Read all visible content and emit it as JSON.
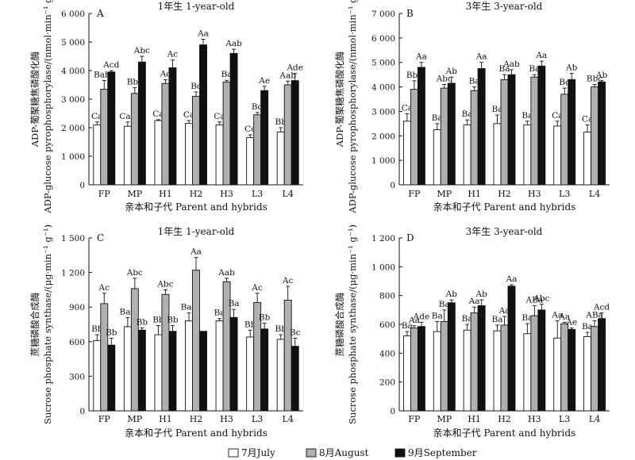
{
  "legend": [
    {
      "label": "7月July",
      "color": "#ffffff"
    },
    {
      "label": "8月August",
      "color": "#b0b0b0"
    },
    {
      "label": "9月September",
      "color": "#111111"
    }
  ],
  "chart_data": [
    {
      "type": "bar",
      "panel": "A",
      "title": "1年生 1-year-old",
      "xlabel": "亲本和子代 Parent and hybrids",
      "ylabel_cn": "ADP-葡聚糖焦磷酸化酶",
      "ylabel_en": "ADP-glucose pyrophosphorylase/(nmol·min⁻¹ g⁻¹)",
      "ylim": [
        0,
        6000
      ],
      "yticks": [
        0,
        1000,
        2000,
        3000,
        4000,
        5000,
        6000
      ],
      "ytick_labels": [
        "0",
        "1 000",
        "2 000",
        "3 000",
        "4 000",
        "5 000",
        "6 000"
      ],
      "categories": [
        "FP",
        "MP",
        "H1",
        "H2",
        "H3",
        "L3",
        "L4"
      ],
      "series": [
        {
          "name": "7月July",
          "values": [
            2100,
            2050,
            2250,
            2150,
            2100,
            1650,
            1850
          ],
          "errors": [
            100,
            150,
            30,
            100,
            100,
            100,
            150
          ],
          "labels": [
            "Ca",
            "Cab",
            "Ca",
            "Ca",
            "Ca",
            "Cc",
            "Bb"
          ]
        },
        {
          "name": "8月August",
          "values": [
            3350,
            3200,
            3550,
            3100,
            3600,
            2450,
            3500
          ],
          "errors": [
            300,
            200,
            130,
            150,
            60,
            80,
            130
          ],
          "labels": [
            "Babc",
            "Bbc",
            "Ac",
            "Bc",
            "Ba",
            "Bd",
            "Aab"
          ]
        },
        {
          "name": "9月September",
          "values": [
            3950,
            4300,
            4100,
            4900,
            4600,
            3300,
            3650
          ],
          "errors": [
            50,
            200,
            270,
            200,
            150,
            150,
            250
          ],
          "labels": [
            "Acd",
            "Abc",
            "Ac",
            "Aa",
            "Aab",
            "Ae",
            "Ade"
          ]
        }
      ]
    },
    {
      "type": "bar",
      "panel": "B",
      "title": "3年生 3-year-old",
      "xlabel": "亲本和子代 Parent and hybrids",
      "ylabel_cn": "ADP-葡聚糖焦磷酸化酶",
      "ylabel_en": "ADP-glucose pyrophosphorylase/(nmol·min⁻¹ g⁻¹)",
      "ylim": [
        0,
        7000
      ],
      "yticks": [
        0,
        1000,
        2000,
        3000,
        4000,
        5000,
        6000,
        7000
      ],
      "ytick_labels": [
        "0",
        "1 000",
        "2 000",
        "3 000",
        "4 000",
        "5 000",
        "6 000",
        "7 000"
      ],
      "categories": [
        "FP",
        "MP",
        "H1",
        "H2",
        "H3",
        "L3",
        "L4"
      ],
      "series": [
        {
          "name": "7月July",
          "values": [
            2600,
            2250,
            2450,
            2500,
            2450,
            2400,
            2150
          ],
          "errors": [
            300,
            250,
            200,
            350,
            150,
            200,
            300
          ],
          "labels": [
            "Ca",
            "Ba",
            "Ba",
            "Ba",
            "Ba",
            "Ca",
            "Ca"
          ]
        },
        {
          "name": "8月August",
          "values": [
            3900,
            3950,
            3850,
            4300,
            4400,
            3700,
            4000
          ],
          "errors": [
            350,
            150,
            150,
            200,
            100,
            250,
            100
          ],
          "labels": [
            "Bbc",
            "Abc",
            "Ba",
            "Ba",
            "Ba",
            "Bc",
            "Bbc"
          ]
        },
        {
          "name": "9月September",
          "values": [
            4800,
            4150,
            4750,
            4500,
            4850,
            4300,
            4200
          ],
          "errors": [
            200,
            250,
            250,
            200,
            200,
            250,
            50
          ],
          "labels": [
            "Aa",
            "Ab",
            "Aa",
            "Aab",
            "Aa",
            "Ab",
            "Ab"
          ]
        }
      ]
    },
    {
      "type": "bar",
      "panel": "C",
      "title": "1年生 1-year-old",
      "xlabel": "亲本和子代 Parent and hybrids",
      "ylabel_cn": "蔗糖磷酸合成酶",
      "ylabel_en": "Sucrose phosphate synthase/(μg·min⁻¹ g⁻¹)",
      "ylim": [
        0,
        1500
      ],
      "yticks": [
        0,
        300,
        600,
        900,
        1200,
        1500
      ],
      "ytick_labels": [
        "0",
        "300",
        "600",
        "900",
        "1 200",
        "1 500"
      ],
      "categories": [
        "FP",
        "MP",
        "H1",
        "H2",
        "H3",
        "L3",
        "L4"
      ],
      "series": [
        {
          "name": "7月July",
          "values": [
            610,
            730,
            660,
            780,
            780,
            640,
            620
          ],
          "errors": [
            50,
            80,
            80,
            70,
            20,
            60,
            40
          ],
          "labels": [
            "Bb",
            "Bab",
            "Bb",
            "Bab",
            "Ba",
            "Bb",
            "Bb"
          ]
        },
        {
          "name": "8月August",
          "values": [
            930,
            1060,
            1010,
            1220,
            1120,
            940,
            960
          ],
          "errors": [
            90,
            90,
            40,
            110,
            30,
            80,
            120
          ],
          "labels": [
            "Ac",
            "Abc",
            "Abc",
            "Aa",
            "Aab",
            "Ac",
            "Ac"
          ]
        },
        {
          "name": "9月September",
          "values": [
            570,
            700,
            690,
            690,
            810,
            710,
            560
          ],
          "errors": [
            60,
            20,
            50,
            0,
            70,
            50,
            70
          ],
          "labels": [
            "Bb",
            "Bb",
            "Bb",
            "",
            "Ba",
            "Bb",
            "Bc"
          ]
        }
      ]
    },
    {
      "type": "bar",
      "panel": "D",
      "title": "3年生 3-year-old",
      "xlabel": "亲本和子代 Parent and hybrids",
      "ylabel_cn": "蔗糖磷酸合成酶",
      "ylabel_en": "Sucrose phosphate synthase/(μg·min⁻¹ g⁻¹)",
      "ylim": [
        0,
        1200
      ],
      "yticks": [
        0,
        200,
        400,
        600,
        800,
        1000,
        1200
      ],
      "ytick_labels": [
        "0",
        "200",
        "400",
        "600",
        "800",
        "1 000",
        "1 200"
      ],
      "categories": [
        "FP",
        "MP",
        "H1",
        "H2",
        "H3",
        "L3",
        "L4"
      ],
      "series": [
        {
          "name": "7月July",
          "values": [
            520,
            550,
            560,
            555,
            535,
            505,
            515
          ],
          "errors": [
            30,
            70,
            40,
            40,
            70,
            120,
            30
          ],
          "labels": [
            "Ba",
            "Ba",
            "Ba",
            "Ba",
            "Ba",
            "Aa",
            "Ba"
          ]
        },
        {
          "name": "8月August",
          "values": [
            575,
            620,
            680,
            595,
            660,
            605,
            585
          ],
          "errors": [
            15,
            80,
            40,
            60,
            70,
            10,
            40
          ],
          "labels": [
            "Aa",
            "Ba",
            "Aa",
            "Aa",
            "ABa",
            "Aa",
            "ABa"
          ]
        },
        {
          "name": "9月September",
          "values": [
            585,
            750,
            730,
            865,
            700,
            565,
            640
          ],
          "errors": [
            30,
            20,
            40,
            10,
            40,
            10,
            40
          ],
          "labels": [
            "Ade",
            "Ab",
            "Ab",
            "Aa",
            "Abc",
            "Ae",
            "Acd"
          ]
        }
      ]
    }
  ]
}
